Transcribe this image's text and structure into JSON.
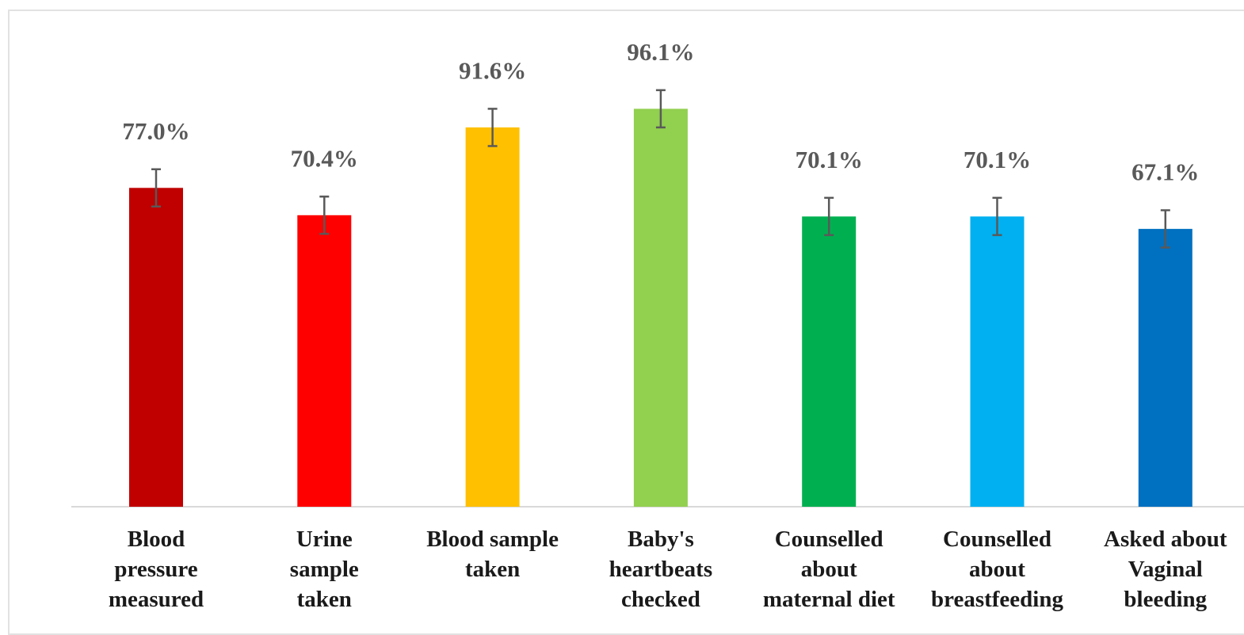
{
  "chart_data": {
    "type": "bar",
    "title": "",
    "xlabel": "",
    "ylabel": "",
    "ylim": [
      0,
      100
    ],
    "grid": false,
    "legend": "none",
    "categories": [
      [
        "Blood",
        "pressure",
        "measured"
      ],
      [
        "Urine",
        "sample",
        "taken"
      ],
      [
        "Blood sample",
        "taken"
      ],
      [
        "Baby's",
        "heartbeats",
        "checked"
      ],
      [
        "Counselled",
        "about",
        "maternal diet"
      ],
      [
        "Counselled",
        "about",
        "breastfeeding"
      ],
      [
        "Asked about",
        "Vaginal",
        "bleeding"
      ]
    ],
    "values": [
      77.0,
      70.4,
      91.6,
      96.1,
      70.1,
      70.1,
      67.1
    ],
    "value_labels": [
      "77.0%",
      "70.4%",
      "91.6%",
      "96.1%",
      "70.1%",
      "70.1%",
      "67.1%"
    ],
    "error_margin": [
      4.5,
      4.5,
      4.5,
      4.5,
      4.5,
      4.5,
      4.5
    ],
    "colors": [
      "#c00000",
      "#ff0000",
      "#ffc000",
      "#92d050",
      "#00b050",
      "#00b0f0",
      "#0070c0"
    ],
    "axis_color": "#d9d9d9",
    "error_bar_color": "#595959"
  }
}
